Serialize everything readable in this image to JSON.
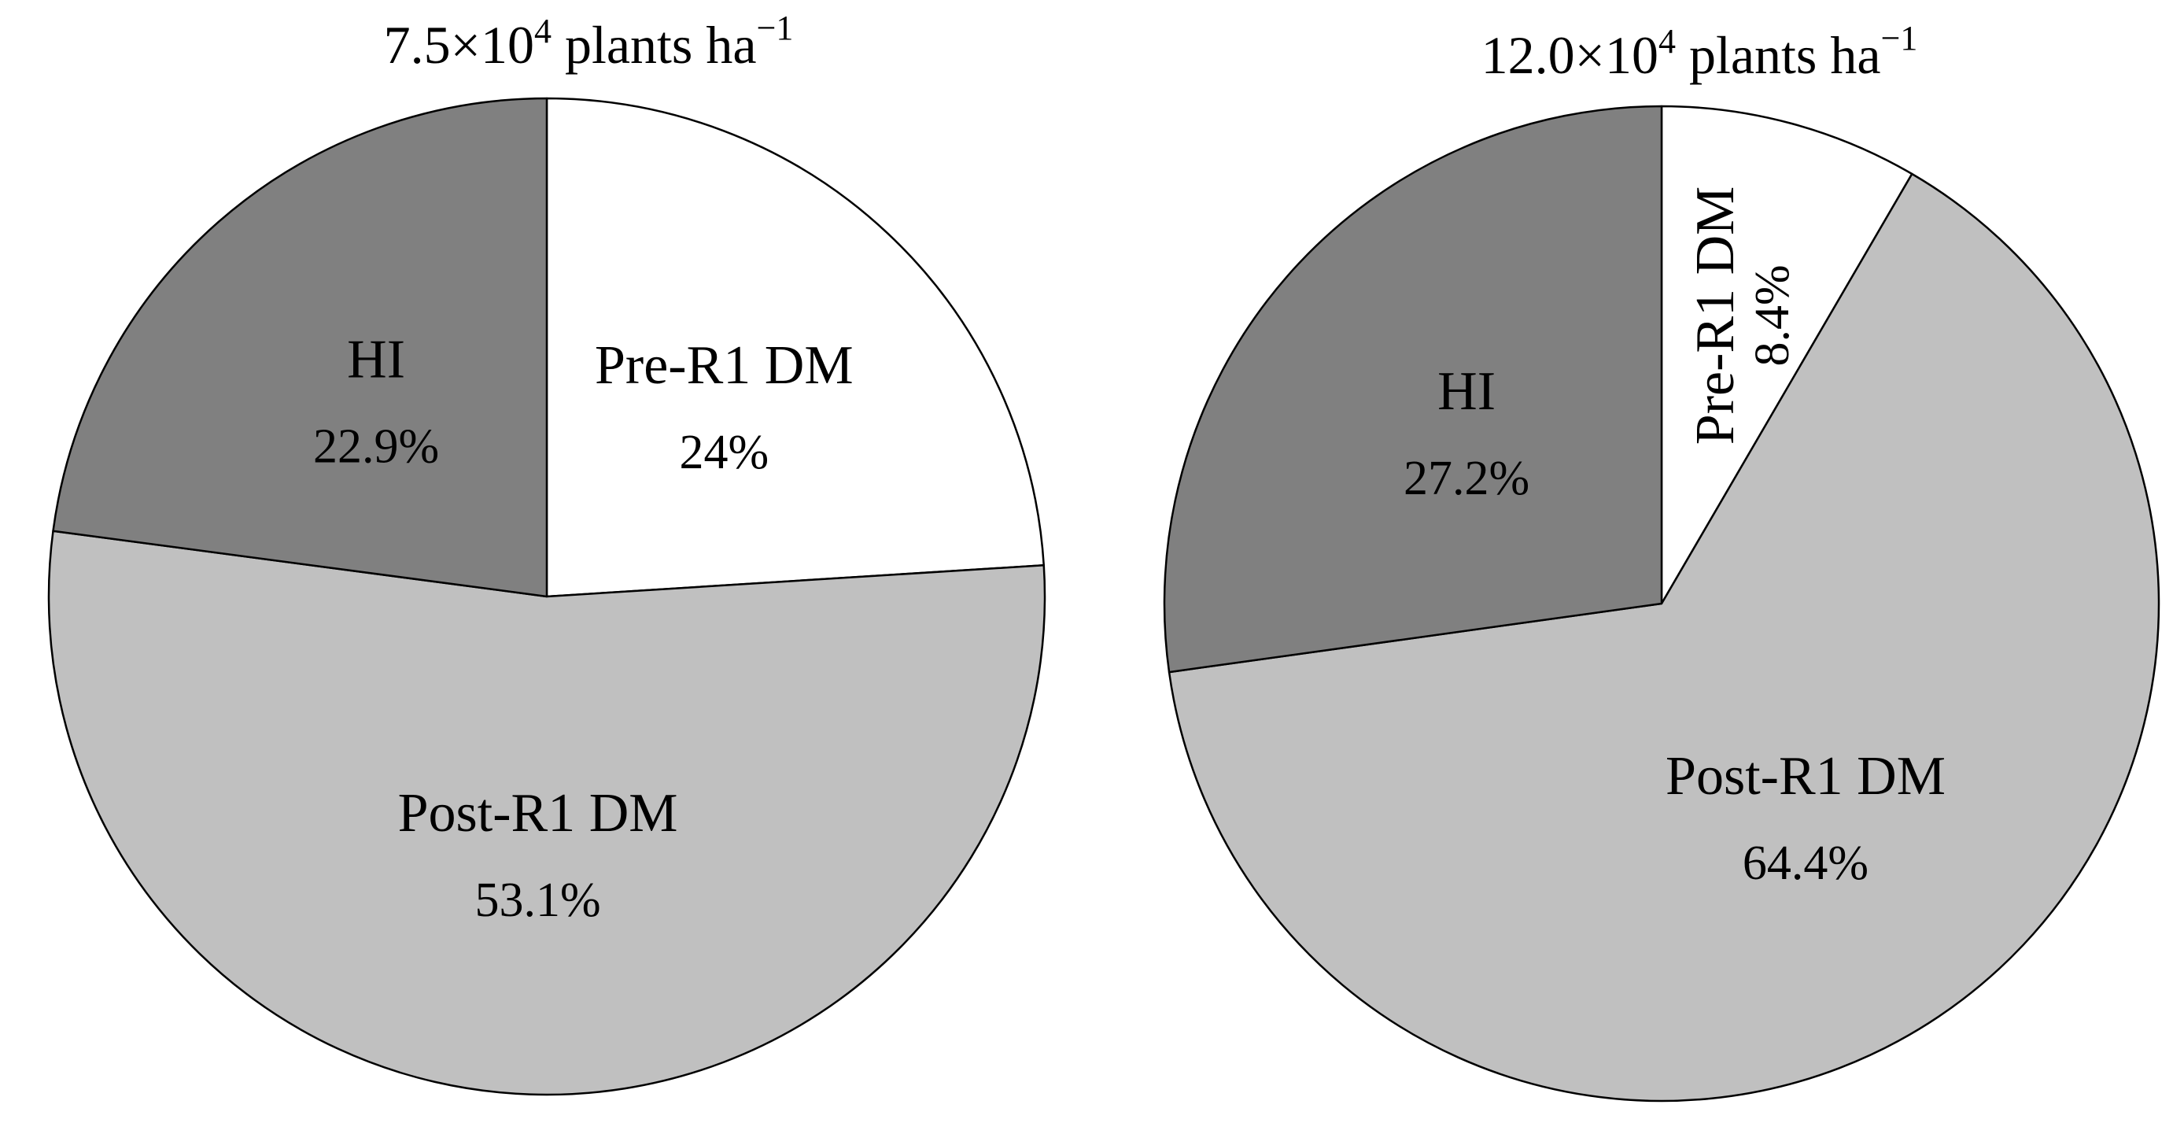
{
  "chart_data": [
    {
      "type": "pie",
      "title": {
        "prefix": "7.5×10",
        "sup1": "4",
        "middle": " plants ha",
        "sup2": "−1"
      },
      "series": [
        {
          "slices": [
            {
              "label": "Pre-R1 DM",
              "percent_text": "24%",
              "value": 24.0,
              "color": "#ffffff",
              "label_style": "horizontal"
            },
            {
              "label": "Post-R1 DM",
              "percent_text": "53.1%",
              "value": 53.1,
              "color": "#c0c0c0",
              "label_style": "horizontal"
            },
            {
              "label": "HI",
              "percent_text": "22.9%",
              "value": 22.9,
              "color": "#808080",
              "label_style": "horizontal"
            }
          ]
        }
      ],
      "start_angle_deg": 0,
      "direction": "clockwise",
      "legend": "none",
      "grid": false
    },
    {
      "type": "pie",
      "title": {
        "prefix": "12.0×10",
        "sup1": "4",
        "middle": " plants ha",
        "sup2": "−1"
      },
      "series": [
        {
          "slices": [
            {
              "label": "Pre-R1 DM",
              "percent_text": "8.4%",
              "value": 8.4,
              "color": "#ffffff",
              "label_style": "rotated"
            },
            {
              "label": "Post-R1 DM",
              "percent_text": "64.4%",
              "value": 64.4,
              "color": "#c0c0c0",
              "label_style": "horizontal"
            },
            {
              "label": "HI",
              "percent_text": "27.2%",
              "value": 27.2,
              "color": "#808080",
              "label_style": "horizontal"
            }
          ]
        }
      ],
      "start_angle_deg": 0,
      "direction": "clockwise",
      "legend": "none",
      "grid": false
    }
  ]
}
